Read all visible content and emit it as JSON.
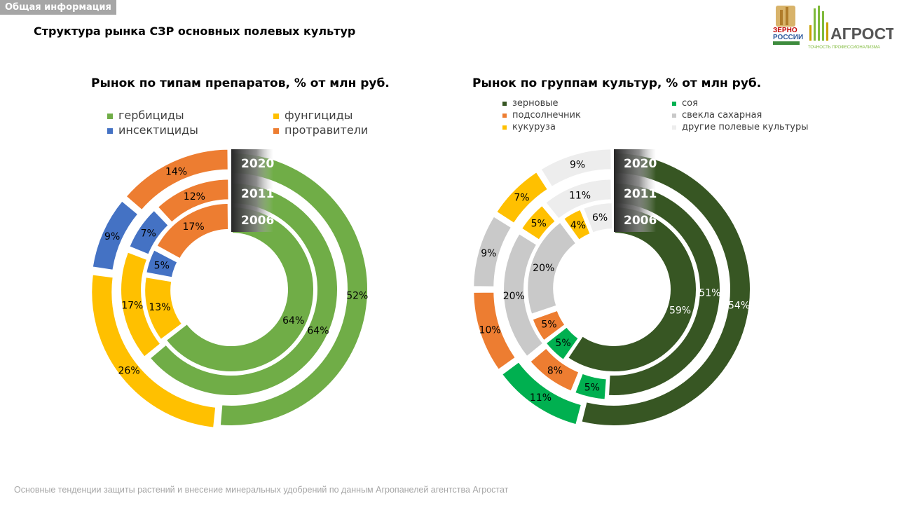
{
  "header": {
    "tag": "Общая информация",
    "title": "Структура рынка СЗР основных полевых культур"
  },
  "logos": {
    "zerno_line1": "ЗЕРНО",
    "zerno_line2": "РОССИИ",
    "agrostat": "АГРОСТАТ",
    "agrostat_tagline": "ТОЧНОСТЬ ПРОФЕССИОНАЛИЗМА"
  },
  "footer": {
    "text": "Основные тенденции защиты растений и внесение минеральных удобрений  по данным Агропанелей агентства Агростат"
  },
  "chart_data": [
    {
      "type": "pie",
      "title": "Рынок по типам препаратов, % от млн руб.",
      "rings": [
        "2020",
        "2011",
        "2006"
      ],
      "categories": [
        "гербициды",
        "фунгициды",
        "инсектициды",
        "протравители"
      ],
      "colors": [
        "#70ad47",
        "#ffc000",
        "#4472c4",
        "#ed7d31"
      ],
      "legend_position": "top",
      "series": [
        {
          "name": "2020",
          "values": [
            52,
            26,
            9,
            14
          ],
          "labels": [
            "52%",
            "26%",
            "9%",
            "14%"
          ]
        },
        {
          "name": "2011",
          "values": [
            64,
            17,
            7,
            12
          ],
          "labels": [
            "64%",
            "17%",
            "7%",
            "12%"
          ]
        },
        {
          "name": "2006",
          "values": [
            64,
            13,
            5,
            17
          ],
          "labels": [
            "64%",
            "13%",
            "5%",
            "17%"
          ]
        }
      ]
    },
    {
      "type": "pie",
      "title": "Рынок по группам культур, % от млн руб.",
      "rings": [
        "2020",
        "2011",
        "2006"
      ],
      "categories": [
        "зерновые",
        "соя",
        "подсолнечник",
        "свекла сахарная",
        "кукуруза",
        "другие полевые культуры"
      ],
      "colors": [
        "#375623",
        "#00b050",
        "#ed7d31",
        "#c9c9c9",
        "#ffc000",
        "#ededed"
      ],
      "legend_position": "top",
      "series": [
        {
          "name": "2020",
          "values": [
            54,
            11,
            10,
            9,
            7,
            9
          ],
          "labels": [
            "54%",
            "11%",
            "10%",
            "9%",
            "7%",
            "9%"
          ]
        },
        {
          "name": "2011",
          "values": [
            51,
            5,
            8,
            20,
            5,
            11
          ],
          "labels": [
            "51%",
            "5%",
            "8%",
            "20%",
            "5%",
            "11%"
          ]
        },
        {
          "name": "2006",
          "values": [
            59,
            5,
            5,
            20,
            4,
            6
          ],
          "labels": [
            "59%",
            "5%",
            "5%",
            "20%",
            "4%",
            "6%"
          ]
        }
      ]
    }
  ]
}
